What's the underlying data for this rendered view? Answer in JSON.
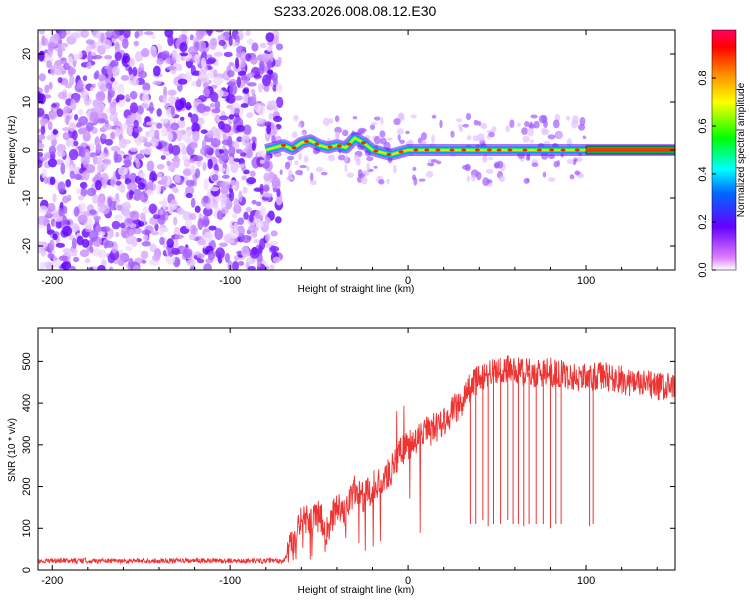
{
  "title": "S233.2026.008.08.12.E30",
  "chart_data": [
    {
      "type": "heatmap",
      "name": "spectrogram",
      "xlabel": "Height of straight line (km)",
      "ylabel": "Frequency (Hz)",
      "xlim": [
        -208,
        150
      ],
      "ylim": [
        -25,
        25
      ],
      "xticks": [
        -200,
        -100,
        0,
        100
      ],
      "yticks": [
        -20,
        -10,
        0,
        10,
        20
      ],
      "colorbar": {
        "label": "Normalized spectral amplitude",
        "range": [
          0,
          1
        ],
        "ticks": [
          0.0,
          0.2,
          0.4,
          0.6,
          0.8
        ]
      },
      "noise_region": [
        -208,
        -72
      ],
      "signal_track": [
        {
          "x": -80,
          "f": 0.0
        },
        {
          "x": -75,
          "f": 0.5
        },
        {
          "x": -70,
          "f": 1.0
        },
        {
          "x": -65,
          "f": 0.2
        },
        {
          "x": -60,
          "f": 1.5
        },
        {
          "x": -55,
          "f": 2.0
        },
        {
          "x": -50,
          "f": 1.0
        },
        {
          "x": -45,
          "f": 0.5
        },
        {
          "x": -40,
          "f": 1.0
        },
        {
          "x": -35,
          "f": 0.5
        },
        {
          "x": -30,
          "f": 2.5
        },
        {
          "x": -25,
          "f": 1.5
        },
        {
          "x": -20,
          "f": 0.0
        },
        {
          "x": -15,
          "f": -0.5
        },
        {
          "x": -10,
          "f": -1.0
        },
        {
          "x": -5,
          "f": -0.5
        },
        {
          "x": 0,
          "f": 0.0
        },
        {
          "x": 20,
          "f": 0.0
        },
        {
          "x": 50,
          "f": 0.0
        },
        {
          "x": 80,
          "f": 0.0
        },
        {
          "x": 100,
          "f": 0.0
        },
        {
          "x": 150,
          "f": 0.0
        }
      ]
    },
    {
      "type": "line",
      "name": "snr",
      "xlabel": "Height of straight line (km)",
      "ylabel": "SNR (10 * v/v)",
      "xlim": [
        -208,
        150
      ],
      "ylim": [
        0,
        580
      ],
      "xticks": [
        -200,
        -100,
        0,
        100
      ],
      "yticks": [
        0,
        100,
        200,
        300,
        400,
        500
      ],
      "color": "#ee3333",
      "series": [
        {
          "name": "SNR",
          "x": [
            -208,
            -150,
            -100,
            -70,
            -65,
            -60,
            -55,
            -50,
            -45,
            -40,
            -35,
            -30,
            -25,
            -20,
            -15,
            -10,
            -5,
            0,
            5,
            10,
            15,
            20,
            25,
            30,
            35,
            40,
            45,
            50,
            60,
            70,
            80,
            90,
            100,
            110,
            120,
            130,
            140,
            150
          ],
          "y": [
            22,
            22,
            22,
            22,
            60,
            130,
            110,
            130,
            90,
            160,
            140,
            190,
            170,
            200,
            220,
            230,
            280,
            300,
            310,
            330,
            340,
            360,
            380,
            400,
            440,
            460,
            470,
            480,
            480,
            470,
            475,
            465,
            460,
            465,
            455,
            445,
            440,
            435
          ]
        }
      ],
      "dropouts": [
        {
          "x": 35,
          "y": 110
        },
        {
          "x": 38,
          "y": 110
        },
        {
          "x": 42,
          "y": 120
        },
        {
          "x": 45,
          "y": 105
        },
        {
          "x": 48,
          "y": 110
        },
        {
          "x": 52,
          "y": 110
        },
        {
          "x": 56,
          "y": 120
        },
        {
          "x": 59,
          "y": 110
        },
        {
          "x": 62,
          "y": 110
        },
        {
          "x": 65,
          "y": 105
        },
        {
          "x": 68,
          "y": 110
        },
        {
          "x": 72,
          "y": 110
        },
        {
          "x": 76,
          "y": 110
        },
        {
          "x": 80,
          "y": 100
        },
        {
          "x": 83,
          "y": 110
        },
        {
          "x": 86,
          "y": 110
        },
        {
          "x": 102,
          "y": 105
        },
        {
          "x": 104,
          "y": 110
        }
      ]
    }
  ]
}
